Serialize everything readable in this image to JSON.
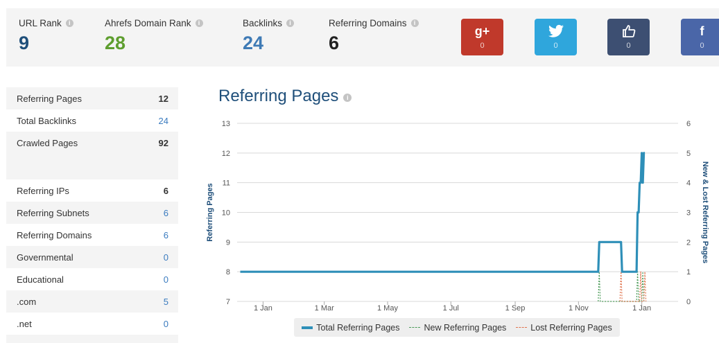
{
  "metrics": [
    {
      "label": "URL Rank",
      "value": "9",
      "color": "#1f4f7a"
    },
    {
      "label": "Ahrefs Domain Rank",
      "value": "28",
      "color": "#5e9e2f"
    },
    {
      "label": "Backlinks",
      "value": "24",
      "color": "#3e7ab5"
    },
    {
      "label": "Referring Domains",
      "value": "6",
      "color": "#222222"
    }
  ],
  "info_glyph": "i",
  "social": [
    {
      "name": "google-plus",
      "glyph": "g+",
      "count": "0",
      "color": "#c0392b"
    },
    {
      "name": "twitter",
      "glyph": "🐦",
      "count": "0",
      "color": "#2fa6dc"
    },
    {
      "name": "like",
      "glyph": "👍",
      "count": "0",
      "color": "#3d4f72"
    },
    {
      "name": "facebook",
      "glyph": "f",
      "count": "0",
      "color": "#4a66a8"
    }
  ],
  "stats_top": [
    {
      "label": "Referring Pages",
      "value": "12",
      "style": "plain"
    },
    {
      "label": "Total Backlinks",
      "value": "24",
      "style": "link"
    },
    {
      "label": "Crawled Pages",
      "value": "92",
      "style": "plain"
    }
  ],
  "stats_bottom": [
    {
      "label": "Referring IPs",
      "value": "6",
      "style": "plain"
    },
    {
      "label": "Referring Subnets",
      "value": "6",
      "style": "link"
    },
    {
      "label": "Referring Domains",
      "value": "6",
      "style": "link"
    },
    {
      "label": "Governmental",
      "value": "0",
      "style": "link"
    },
    {
      "label": "Educational",
      "value": "0",
      "style": "link"
    },
    {
      "label": ".com",
      "value": "5",
      "style": "link"
    },
    {
      "label": ".net",
      "value": "0",
      "style": "link"
    }
  ],
  "chart_data": {
    "type": "line",
    "title": "Referring Pages",
    "ylabel": "Referring Pages",
    "y2label": "New & Lost Referring Pages",
    "ylim": [
      7,
      13
    ],
    "y2lim": [
      0,
      6
    ],
    "yticks": [
      "7",
      "8",
      "9",
      "10",
      "11",
      "12",
      "13"
    ],
    "y2ticks": [
      "0",
      "1",
      "2",
      "3",
      "4",
      "5",
      "6"
    ],
    "xlim": [
      "2014-12-07",
      "2016-02-05"
    ],
    "xticks": [
      {
        "label": "1 Jan",
        "date": "2015-01-01"
      },
      {
        "label": "1 Mar",
        "date": "2015-03-01"
      },
      {
        "label": "1 May",
        "date": "2015-05-01"
      },
      {
        "label": "1 Jul",
        "date": "2015-07-01"
      },
      {
        "label": "1 Sep",
        "date": "2015-09-01"
      },
      {
        "label": "1 Nov",
        "date": "2015-11-01"
      },
      {
        "label": "1 Jan",
        "date": "2016-01-01"
      }
    ],
    "grid": true,
    "legend_position": "bottom",
    "colors": {
      "total": "#2e8fb8",
      "new": "#4a9a57",
      "lost": "#e0714a"
    },
    "series": [
      {
        "name": "Total Referring Pages",
        "axis": "left",
        "points": [
          [
            "2014-12-10",
            8
          ],
          [
            "2015-11-20",
            8
          ],
          [
            "2015-11-21",
            9
          ],
          [
            "2015-12-12",
            9
          ],
          [
            "2015-12-13",
            8
          ],
          [
            "2015-12-27",
            8
          ],
          [
            "2015-12-28",
            10
          ],
          [
            "2015-12-29",
            10
          ],
          [
            "2015-12-30",
            11
          ],
          [
            "2015-12-31",
            11
          ],
          [
            "2016-01-01",
            12
          ],
          [
            "2016-01-02",
            11
          ],
          [
            "2016-01-03",
            12
          ],
          [
            "2016-01-04",
            12
          ]
        ]
      },
      {
        "name": "New Referring Pages",
        "axis": "right",
        "points": [
          [
            "2015-11-20",
            0
          ],
          [
            "2015-11-21",
            1
          ],
          [
            "2015-11-22",
            0
          ],
          [
            "2015-12-27",
            0
          ],
          [
            "2015-12-28",
            1
          ],
          [
            "2015-12-29",
            0
          ],
          [
            "2016-01-01",
            0
          ],
          [
            "2016-01-02",
            1
          ],
          [
            "2016-01-03",
            0
          ]
        ]
      },
      {
        "name": "Lost Referring Pages",
        "axis": "right",
        "points": [
          [
            "2015-12-11",
            0
          ],
          [
            "2015-12-12",
            1
          ],
          [
            "2015-12-13",
            0
          ],
          [
            "2015-12-30",
            0
          ],
          [
            "2015-12-31",
            1
          ],
          [
            "2016-01-01",
            0
          ],
          [
            "2016-01-03",
            0
          ],
          [
            "2016-01-04",
            1
          ],
          [
            "2016-01-05",
            0
          ]
        ]
      }
    ]
  }
}
